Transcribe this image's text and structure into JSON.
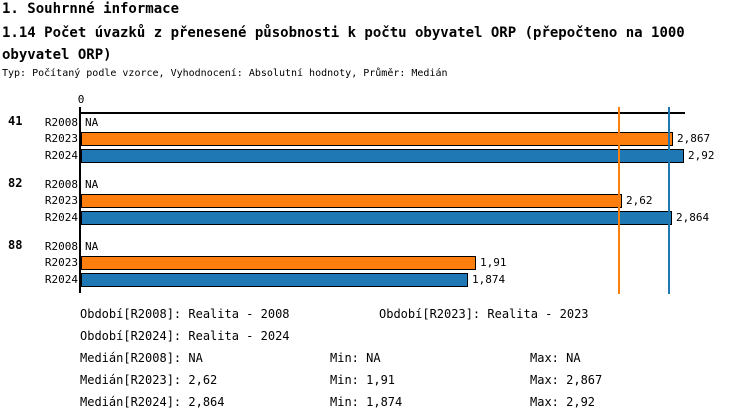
{
  "header": {
    "section_title": "1. Souhrnné informace",
    "chart_title": "1.14 Počet úvazků z přenesené působnosti k počtu obyvatel ORP (přepočteno na 1000 obyvatel ORP)",
    "meta": "Typ: Počítaný podle vzorce, Vyhodnocení: Absolutní hodnoty, Průměr: Medián"
  },
  "chart_data": {
    "type": "bar",
    "orientation": "horizontal",
    "title": "1.14 Počet úvazků z přenesené působnosti k počtu obyvatel ORP (přepočteno na 1000 obyvatel ORP)",
    "xlim": [
      0,
      2.94
    ],
    "axis_zero_label": "0",
    "na_display": "NA",
    "groups": [
      {
        "id": "41",
        "rows": [
          {
            "label": "R2008",
            "value": null,
            "display": "NA"
          },
          {
            "label": "R2023",
            "value": 2.867,
            "display": "2,867",
            "color": "#ff7f0e"
          },
          {
            "label": "R2024",
            "value": 2.92,
            "display": "2,92",
            "color": "#1f77b4"
          }
        ]
      },
      {
        "id": "82",
        "rows": [
          {
            "label": "R2008",
            "value": null,
            "display": "NA"
          },
          {
            "label": "R2023",
            "value": 2.62,
            "display": "2,62",
            "color": "#ff7f0e"
          },
          {
            "label": "R2024",
            "value": 2.864,
            "display": "2,864",
            "color": "#1f77b4"
          }
        ]
      },
      {
        "id": "88",
        "rows": [
          {
            "label": "R2008",
            "value": null,
            "display": "NA"
          },
          {
            "label": "R2023",
            "value": 1.91,
            "display": "1,91",
            "color": "#ff7f0e"
          },
          {
            "label": "R2024",
            "value": 1.874,
            "display": "1,874",
            "color": "#1f77b4"
          }
        ]
      }
    ],
    "median_lines": [
      {
        "series": "R2023",
        "value": 2.62,
        "color": "#ff7f0e"
      },
      {
        "series": "R2024",
        "value": 2.864,
        "color": "#1f77b4"
      }
    ],
    "colors": {
      "series_r2023": "#ff7f0e",
      "series_r2024": "#1f77b4",
      "axis": "#000000"
    }
  },
  "legend": {
    "obdobi_r2008": "Období[R2008]: Realita - 2008",
    "obdobi_r2023": "Období[R2023]: Realita - 2023",
    "obdobi_r2024": "Období[R2024]: Realita - 2024"
  },
  "stats": {
    "median_r2008": "Medián[R2008]: NA",
    "min_r2008": "Min: NA",
    "max_r2008": "Max: NA",
    "median_r2023": "Medián[R2023]: 2,62",
    "min_r2023": "Min: 1,91",
    "max_r2023": "Max: 2,867",
    "median_r2024": "Medián[R2024]: 2,864",
    "min_r2024": "Min: 1,874",
    "max_r2024": "Max: 2,92"
  }
}
